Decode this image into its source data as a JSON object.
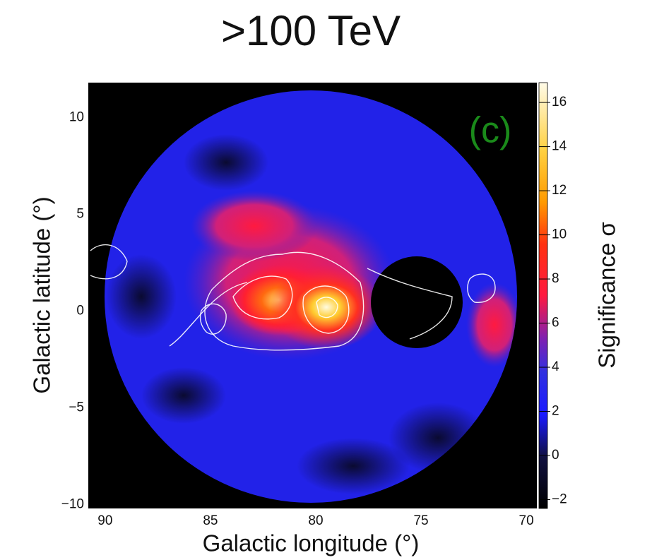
{
  "chart_data": {
    "type": "heatmap",
    "title": ">100 TeV",
    "panel_label": "(c)",
    "x_label": "Galactic longitude (°)",
    "y_label": "Galactic latitude (°)",
    "colorbar_label": "Significance σ",
    "xlim": [
      90.8,
      69.5
    ],
    "xticks": [
      90,
      85,
      80,
      75,
      70
    ],
    "ylim": [
      -10.2,
      11.8
    ],
    "yticks": [
      {
        "value": -10,
        "label": "−10"
      },
      {
        "value": -5,
        "label": "−5"
      },
      0,
      5,
      10
    ],
    "clim": [
      -2.4,
      16.9
    ],
    "cticks": [
      {
        "value": -2,
        "label": "−2"
      },
      0,
      2,
      4,
      6,
      8,
      10,
      12,
      14,
      16
    ]
  }
}
